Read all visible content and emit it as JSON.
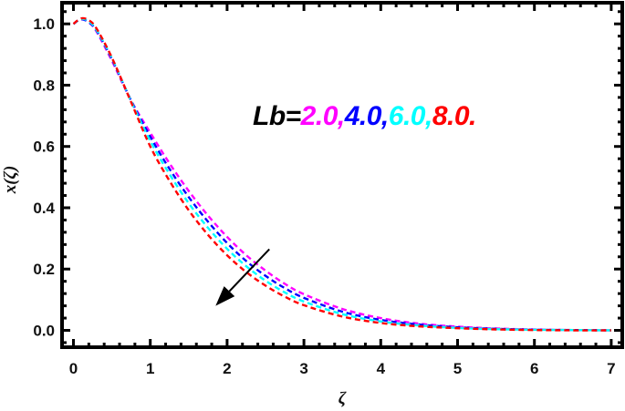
{
  "chart_data": {
    "type": "line",
    "title": "",
    "xlabel": "ζ",
    "ylabel": "x(ζ)",
    "xlim": [
      -0.15,
      7.15
    ],
    "ylim": [
      -0.055,
      1.07
    ],
    "xticks": [
      0,
      1,
      2,
      3,
      4,
      5,
      6,
      7
    ],
    "xtick_labels": [
      "0",
      "1",
      "2",
      "3",
      "4",
      "5",
      "6",
      "7"
    ],
    "yticks": [
      0.0,
      0.2,
      0.4,
      0.6,
      0.8,
      1.0
    ],
    "ytick_labels": [
      "0.0",
      "0.2",
      "0.4",
      "0.6",
      "0.8",
      "1.0"
    ],
    "grid": false,
    "line_style": "dashed",
    "x": [
      0,
      0.1,
      0.2,
      0.3,
      0.5,
      0.75,
      1.0,
      1.25,
      1.5,
      1.75,
      2.0,
      2.25,
      2.5,
      2.75,
      3.0,
      3.5,
      4.0,
      4.5,
      5.0,
      5.5,
      6.0,
      6.5,
      7.0
    ],
    "series": [
      {
        "name": "Lb=2.0",
        "color": "#ff00ff",
        "values": [
          1.0,
          1.015,
          1.005,
          0.975,
          0.88,
          0.75,
          0.645,
          0.545,
          0.455,
          0.375,
          0.305,
          0.245,
          0.195,
          0.152,
          0.118,
          0.07,
          0.04,
          0.022,
          0.012,
          0.006,
          0.003,
          0.001,
          0.0
        ]
      },
      {
        "name": "Lb=4.0",
        "color": "#0000ff",
        "values": [
          1.0,
          1.015,
          1.005,
          0.978,
          0.885,
          0.75,
          0.632,
          0.527,
          0.435,
          0.355,
          0.285,
          0.226,
          0.178,
          0.138,
          0.106,
          0.061,
          0.034,
          0.019,
          0.01,
          0.005,
          0.002,
          0.001,
          0.0
        ]
      },
      {
        "name": "Lb=6.0",
        "color": "#00ffff",
        "values": [
          1.0,
          1.016,
          1.008,
          0.98,
          0.888,
          0.748,
          0.618,
          0.51,
          0.415,
          0.335,
          0.266,
          0.209,
          0.162,
          0.124,
          0.094,
          0.053,
          0.029,
          0.016,
          0.008,
          0.004,
          0.002,
          0.001,
          0.0
        ]
      },
      {
        "name": "Lb=8.0",
        "color": "#ff0000",
        "values": [
          1.0,
          1.018,
          1.012,
          0.985,
          0.89,
          0.745,
          0.6,
          0.488,
          0.392,
          0.312,
          0.245,
          0.19,
          0.146,
          0.11,
          0.082,
          0.045,
          0.024,
          0.013,
          0.007,
          0.003,
          0.001,
          0.0,
          0.0
        ]
      }
    ],
    "legend": {
      "prefix": "Lb=",
      "entries": [
        {
          "text": "2.0,",
          "color": "#ff00ff"
        },
        {
          "text": "4.0,",
          "color": "#0000ff"
        },
        {
          "text": "6.0,",
          "color": "#00ffff"
        },
        {
          "text": "8.0.",
          "color": "#ff0000"
        }
      ],
      "position": "upper right (inside plot)"
    },
    "annotations": [
      {
        "type": "arrow",
        "from": [
          2.55,
          0.265
        ],
        "to": [
          1.85,
          0.08
        ],
        "meaning": "increasing Lb",
        "color": "#000000"
      }
    ]
  }
}
